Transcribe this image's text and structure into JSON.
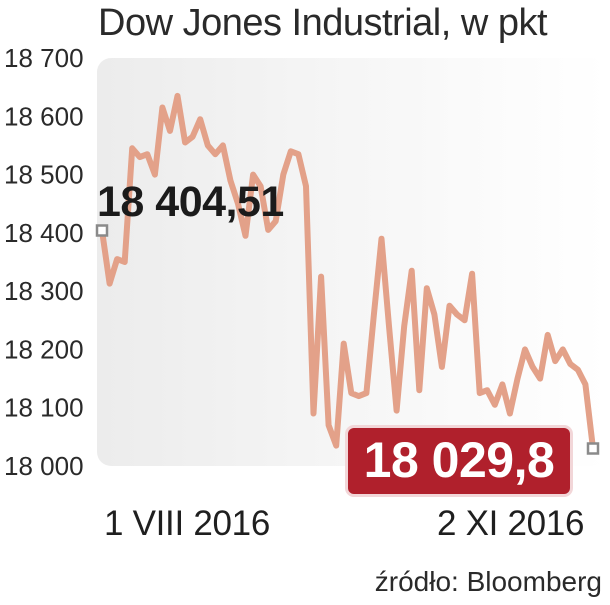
{
  "chart_data": {
    "type": "line",
    "title": "Dow Jones Industrial, w pkt",
    "y_ticks": [
      "18 700",
      "18 600",
      "18 500",
      "18 400",
      "18 300",
      "18 200",
      "18 100",
      "18 000"
    ],
    "ylim": [
      18000,
      18700
    ],
    "x_ticks": [
      "1 VIII 2016",
      "2 XI 2016"
    ],
    "series": [
      {
        "color": "#e3a189",
        "values": [
          18404,
          18313,
          18355,
          18350,
          18545,
          18530,
          18535,
          18500,
          18615,
          18575,
          18635,
          18555,
          18565,
          18595,
          18550,
          18535,
          18550,
          18490,
          18450,
          18395,
          18500,
          18480,
          18405,
          18420,
          18500,
          18540,
          18535,
          18480,
          18090,
          18325,
          18070,
          18035,
          18210,
          18125,
          18120,
          18125,
          18260,
          18390,
          18240,
          18095,
          18240,
          18335,
          18130,
          18305,
          18260,
          18170,
          18275,
          18260,
          18250,
          18330,
          18125,
          18130,
          18105,
          18140,
          18090,
          18150,
          18200,
          18170,
          18150,
          18225,
          18180,
          18200,
          18175,
          18165,
          18140,
          18030
        ]
      }
    ],
    "start_value_label": "18 404,51",
    "end_value_label": "18 029,8",
    "grid": false
  },
  "source_label": "źródło: Bloomberg",
  "colors": {
    "line": "#e3a189",
    "end_box": "#b0202c",
    "marker": "#8a8a8a"
  }
}
